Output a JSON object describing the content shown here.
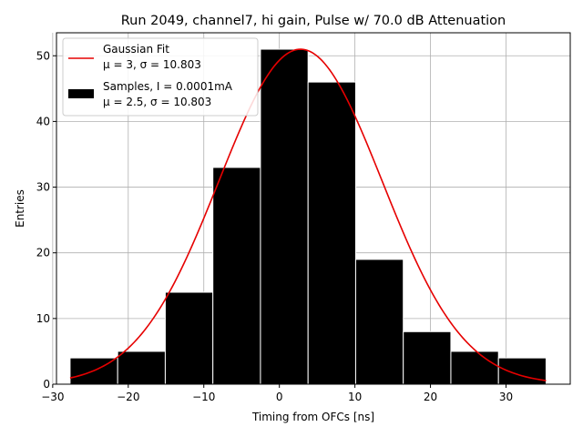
{
  "chart_data": {
    "type": "bar",
    "title": "Run 2049, channel7, hi gain, Pulse w/ 70.0 dB Attenuation",
    "xlabel": "Timing from OFCs [ns]",
    "ylabel": "Entries",
    "xlim": [
      -29.5,
      38.5
    ],
    "ylim": [
      0,
      53.5
    ],
    "xticks": [
      -30,
      -20,
      -10,
      0,
      10,
      20,
      30
    ],
    "yticks": [
      0,
      10,
      20,
      30,
      40,
      50
    ],
    "grid": true,
    "legend_position": "top-left",
    "bins": {
      "edges": [
        -27.7,
        -21.4,
        -15.1,
        -8.8,
        -2.5,
        3.8,
        10.1,
        16.4,
        22.7,
        29.0,
        35.3
      ],
      "counts": [
        4,
        5,
        14,
        33,
        51,
        46,
        19,
        8,
        5,
        4
      ],
      "color": "#000000",
      "edgecolor": "#ffffff"
    },
    "fit": {
      "mu": 2.8,
      "sigma": 10.8,
      "amplitude": 51,
      "x_range": [
        -27.7,
        35.3
      ],
      "color": "#e60000"
    },
    "legend": [
      {
        "kind": "line",
        "color": "#e60000",
        "line1": "Gaussian Fit",
        "line2": "μ = 3, σ = 10.803"
      },
      {
        "kind": "patch",
        "color": "#000000",
        "line1": "Samples, I = 0.0001mA",
        "line2": "μ = 2.5, σ = 10.803"
      }
    ]
  }
}
